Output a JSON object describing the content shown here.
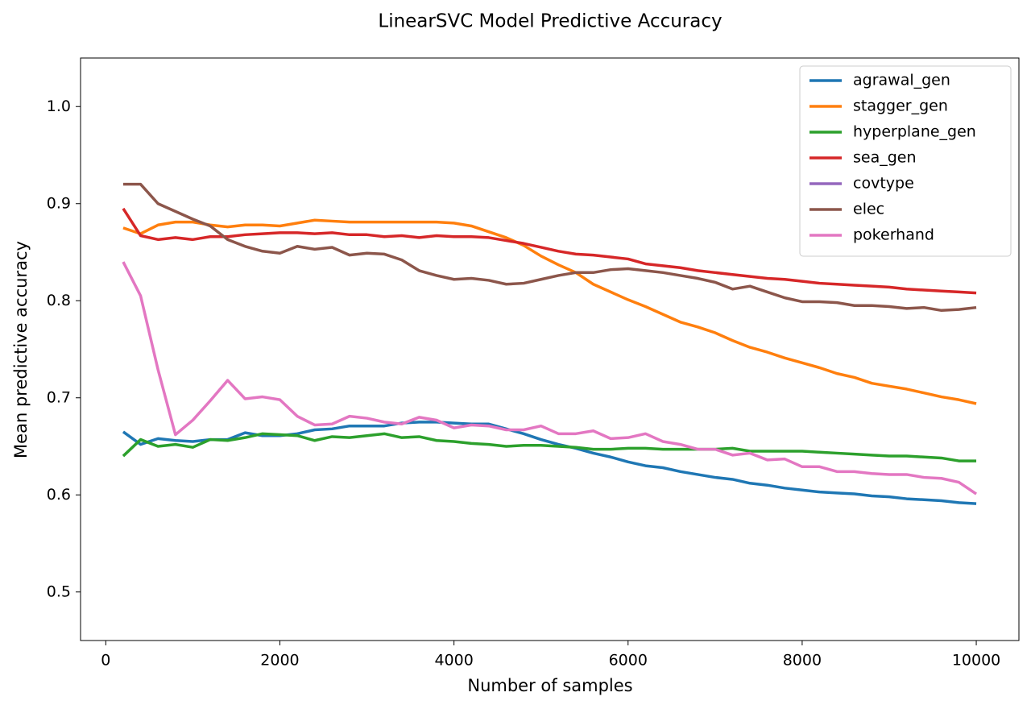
{
  "chart_data": {
    "type": "line",
    "title": "LinearSVC Model Predictive Accuracy",
    "x_label": "Number of samples",
    "y_label": "Mean predictive accuracy",
    "x": [
      200,
      400,
      600,
      800,
      1000,
      1200,
      1400,
      1600,
      1800,
      2000,
      2200,
      2400,
      2600,
      2800,
      3000,
      3200,
      3400,
      3600,
      3800,
      4000,
      4200,
      4400,
      4600,
      4800,
      5000,
      5200,
      5400,
      5600,
      5800,
      6000,
      6200,
      6400,
      6600,
      6800,
      7000,
      7200,
      7400,
      7600,
      7800,
      8000,
      8200,
      8400,
      8600,
      8800,
      9000,
      9200,
      9400,
      9600,
      9800,
      10000
    ],
    "series": [
      {
        "name": "agrawal_gen",
        "color": "#1f77b4",
        "values": [
          0.665,
          0.652,
          0.658,
          0.656,
          0.655,
          0.657,
          0.657,
          0.664,
          0.661,
          0.661,
          0.663,
          0.667,
          0.668,
          0.671,
          0.671,
          0.671,
          0.674,
          0.675,
          0.675,
          0.674,
          0.673,
          0.673,
          0.668,
          0.663,
          0.657,
          0.652,
          0.648,
          0.643,
          0.639,
          0.634,
          0.63,
          0.628,
          0.624,
          0.621,
          0.618,
          0.616,
          0.612,
          0.61,
          0.607,
          0.605,
          0.603,
          0.602,
          0.601,
          0.599,
          0.598,
          0.596,
          0.595,
          0.594,
          0.592,
          0.591
        ]
      },
      {
        "name": "stagger_gen",
        "color": "#ff7f0e",
        "values": [
          0.875,
          0.869,
          0.878,
          0.881,
          0.881,
          0.878,
          0.876,
          0.878,
          0.878,
          0.877,
          0.88,
          0.883,
          0.882,
          0.881,
          0.881,
          0.881,
          0.881,
          0.881,
          0.881,
          0.88,
          0.877,
          0.871,
          0.865,
          0.857,
          0.846,
          0.837,
          0.829,
          0.817,
          0.809,
          0.801,
          0.794,
          0.786,
          0.778,
          0.773,
          0.767,
          0.759,
          0.752,
          0.747,
          0.741,
          0.736,
          0.731,
          0.725,
          0.721,
          0.715,
          0.712,
          0.709,
          0.705,
          0.701,
          0.698,
          0.694
        ]
      },
      {
        "name": "hyperplane_gen",
        "color": "#2ca02c",
        "values": [
          0.64,
          0.657,
          0.65,
          0.652,
          0.649,
          0.657,
          0.656,
          0.659,
          0.663,
          0.662,
          0.661,
          0.656,
          0.66,
          0.659,
          0.661,
          0.663,
          0.659,
          0.66,
          0.656,
          0.655,
          0.653,
          0.652,
          0.65,
          0.651,
          0.651,
          0.65,
          0.649,
          0.647,
          0.647,
          0.648,
          0.648,
          0.647,
          0.647,
          0.647,
          0.647,
          0.648,
          0.645,
          0.645,
          0.645,
          0.645,
          0.644,
          0.643,
          0.642,
          0.641,
          0.64,
          0.64,
          0.639,
          0.638,
          0.635,
          0.635
        ]
      },
      {
        "name": "sea_gen",
        "color": "#d62728",
        "values": [
          0.895,
          0.867,
          0.863,
          0.865,
          0.863,
          0.866,
          0.866,
          0.868,
          0.869,
          0.87,
          0.87,
          0.869,
          0.87,
          0.868,
          0.868,
          0.866,
          0.867,
          0.865,
          0.867,
          0.866,
          0.866,
          0.865,
          0.862,
          0.859,
          0.855,
          0.851,
          0.848,
          0.847,
          0.845,
          0.843,
          0.838,
          0.836,
          0.834,
          0.831,
          0.829,
          0.827,
          0.825,
          0.823,
          0.822,
          0.82,
          0.818,
          0.817,
          0.816,
          0.815,
          0.814,
          0.812,
          0.811,
          0.81,
          0.809,
          0.808
        ]
      },
      {
        "name": "covtype",
        "color": "#9467bd",
        "values": [
          null,
          null,
          null,
          null,
          null,
          null,
          null,
          null,
          null,
          null,
          null,
          null,
          null,
          null,
          null,
          null,
          null,
          null,
          null,
          null,
          null,
          null,
          null,
          null,
          null,
          null,
          null,
          null,
          null,
          null,
          null,
          null,
          null,
          null,
          null,
          null,
          null,
          null,
          null,
          null,
          null,
          null,
          null,
          null,
          null,
          null,
          null,
          null,
          null,
          null
        ]
      },
      {
        "name": "elec",
        "color": "#8c564b",
        "values": [
          0.92,
          0.92,
          0.9,
          0.892,
          0.884,
          0.877,
          0.863,
          0.856,
          0.851,
          0.849,
          0.856,
          0.853,
          0.855,
          0.847,
          0.849,
          0.848,
          0.842,
          0.831,
          0.826,
          0.822,
          0.823,
          0.821,
          0.817,
          0.818,
          0.822,
          0.826,
          0.829,
          0.829,
          0.832,
          0.833,
          0.831,
          0.829,
          0.826,
          0.823,
          0.819,
          0.812,
          0.815,
          0.809,
          0.803,
          0.799,
          0.799,
          0.798,
          0.795,
          0.795,
          0.794,
          0.792,
          0.793,
          0.79,
          0.791,
          0.793
        ]
      },
      {
        "name": "pokerhand",
        "color": "#e377c2",
        "values": [
          0.84,
          0.805,
          0.729,
          0.662,
          0.677,
          0.697,
          0.718,
          0.699,
          0.701,
          0.698,
          0.681,
          0.672,
          0.673,
          0.681,
          0.679,
          0.675,
          0.673,
          0.68,
          0.677,
          0.669,
          0.672,
          0.671,
          0.667,
          0.667,
          0.671,
          0.663,
          0.663,
          0.666,
          0.658,
          0.659,
          0.663,
          0.655,
          0.652,
          0.647,
          0.647,
          0.641,
          0.643,
          0.636,
          0.637,
          0.629,
          0.629,
          0.624,
          0.624,
          0.622,
          0.621,
          0.621,
          0.618,
          0.617,
          0.613,
          0.601
        ]
      }
    ],
    "xlim": [
      -290,
      10490
    ],
    "ylim": [
      0.45,
      1.05
    ],
    "xticks": [
      0,
      2000,
      4000,
      6000,
      8000,
      10000
    ],
    "yticks": [
      0.5,
      0.6,
      0.7,
      0.8,
      0.9,
      {
        "value": 1,
        "label": "1.0"
      }
    ],
    "legend": "upper right"
  }
}
